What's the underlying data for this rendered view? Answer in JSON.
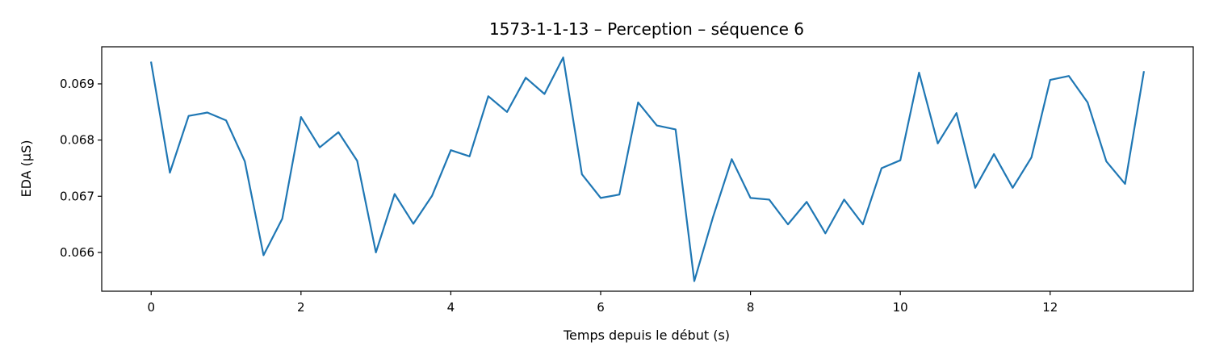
{
  "chart_data": {
    "type": "line",
    "title": "1573-1-1-13 – Perception – séquence 6",
    "xlabel": "Temps depuis le début (s)",
    "ylabel": "EDA (µS)",
    "xlim": [
      -0.66,
      13.91
    ],
    "ylim": [
      0.06531,
      0.06966
    ],
    "x_ticks": [
      0,
      2,
      4,
      6,
      8,
      10,
      12
    ],
    "x_tick_labels": [
      "0",
      "2",
      "4",
      "6",
      "8",
      "10",
      "12"
    ],
    "y_ticks": [
      0.066,
      0.067,
      0.068,
      0.069
    ],
    "y_tick_labels": [
      "0.066",
      "0.067",
      "0.068",
      "0.069"
    ],
    "grid": false,
    "line_color": "#1f77b4",
    "series": [
      {
        "x": [
          0,
          0.25,
          0.5,
          0.75,
          1,
          1.25,
          1.5,
          1.75,
          2,
          2.25,
          2.5,
          2.75,
          3,
          3.25,
          3.5,
          3.75,
          4,
          4.25,
          4.5,
          4.75,
          5,
          5.25,
          5.5,
          5.75,
          6,
          6.25,
          6.5,
          6.75,
          7,
          7.25,
          7.5,
          7.75,
          8,
          8.25,
          8.5,
          8.75,
          9,
          9.25,
          9.5,
          9.75,
          10,
          10.25,
          10.5,
          10.75,
          11,
          11.25,
          11.5,
          11.75,
          12,
          12.25,
          12.5,
          12.75,
          13,
          13.25
        ],
        "values": [
          0.06938,
          0.06742,
          0.06843,
          0.06849,
          0.06835,
          0.06762,
          0.06595,
          0.0666,
          0.06841,
          0.06787,
          0.06814,
          0.06763,
          0.066,
          0.06704,
          0.06651,
          0.06701,
          0.06782,
          0.06771,
          0.06878,
          0.0685,
          0.06911,
          0.06882,
          0.06947,
          0.06739,
          0.06697,
          0.06703,
          0.06867,
          0.06826,
          0.06819,
          0.06549,
          0.06663,
          0.06766,
          0.06697,
          0.06694,
          0.0665,
          0.0669,
          0.06634,
          0.06694,
          0.0665,
          0.0675,
          0.06764,
          0.0692,
          0.06794,
          0.06848,
          0.06715,
          0.06775,
          0.06715,
          0.06769,
          0.06907,
          0.06914,
          0.06867,
          0.06762,
          0.06722,
          0.06921
        ]
      }
    ]
  }
}
